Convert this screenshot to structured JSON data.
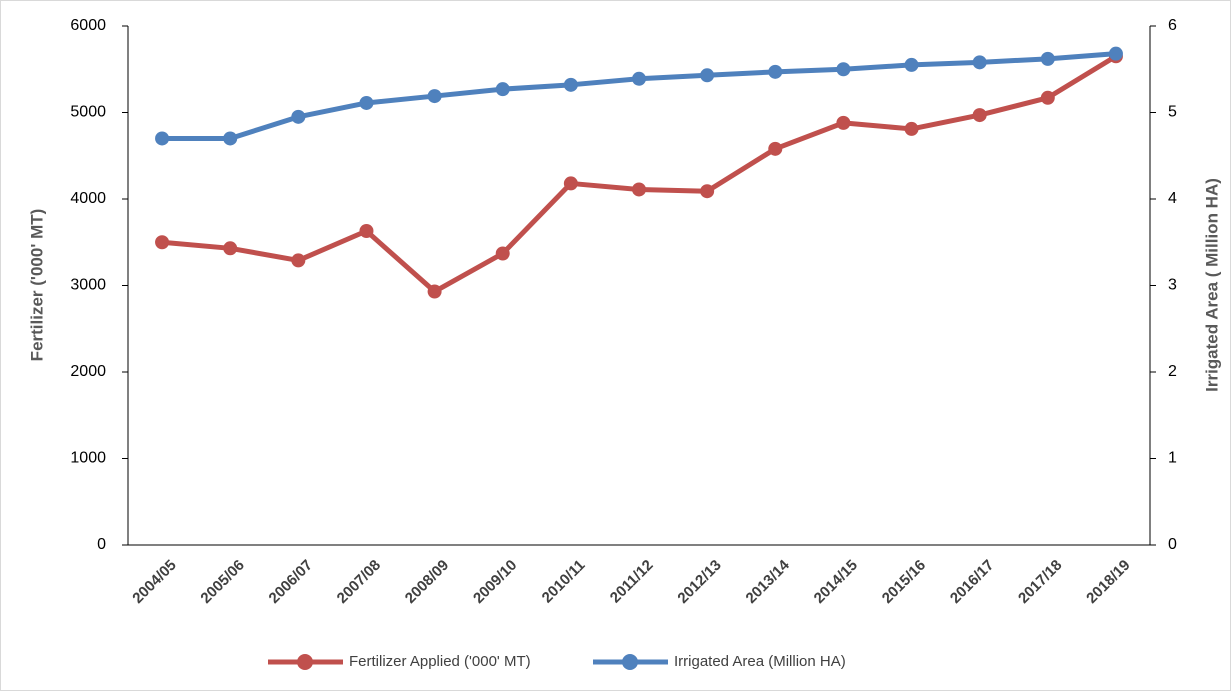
{
  "chart_data": {
    "type": "line",
    "categories": [
      "2004/05",
      "2005/06",
      "2006/07",
      "2007/08",
      "2008/09",
      "2009/10",
      "2010/11",
      "2011/12",
      "2012/13",
      "2013/14",
      "2014/15",
      "2015/16",
      "2016/17",
      "2017/18",
      "2018/19"
    ],
    "y_label": "Fertilizer ('000' MT)",
    "y2_label": "Irrigated Area ( Million HA)",
    "ylim": [
      0,
      6000
    ],
    "yticks": [
      0,
      1000,
      2000,
      3000,
      4000,
      5000,
      6000
    ],
    "y2lim": [
      0,
      6
    ],
    "y2ticks": [
      0,
      1,
      2,
      3,
      4,
      5,
      6
    ],
    "grid": false,
    "legend": "bottom",
    "series": [
      {
        "name": "Fertilizer Applied ('000' MT)",
        "color": "#c0504d",
        "values": [
          3500,
          3430,
          3290,
          3630,
          2930,
          3370,
          4180,
          4110,
          4090,
          4580,
          4880,
          4810,
          4970,
          5170,
          5650
        ]
      },
      {
        "name": "Irrigated Area (Million HA)",
        "color": "#4f81bd",
        "axis": "y2",
        "values": [
          4.7,
          4.7,
          4.95,
          5.11,
          5.19,
          5.27,
          5.32,
          5.39,
          5.43,
          5.47,
          5.5,
          5.55,
          5.58,
          5.62,
          5.68
        ]
      }
    ]
  }
}
